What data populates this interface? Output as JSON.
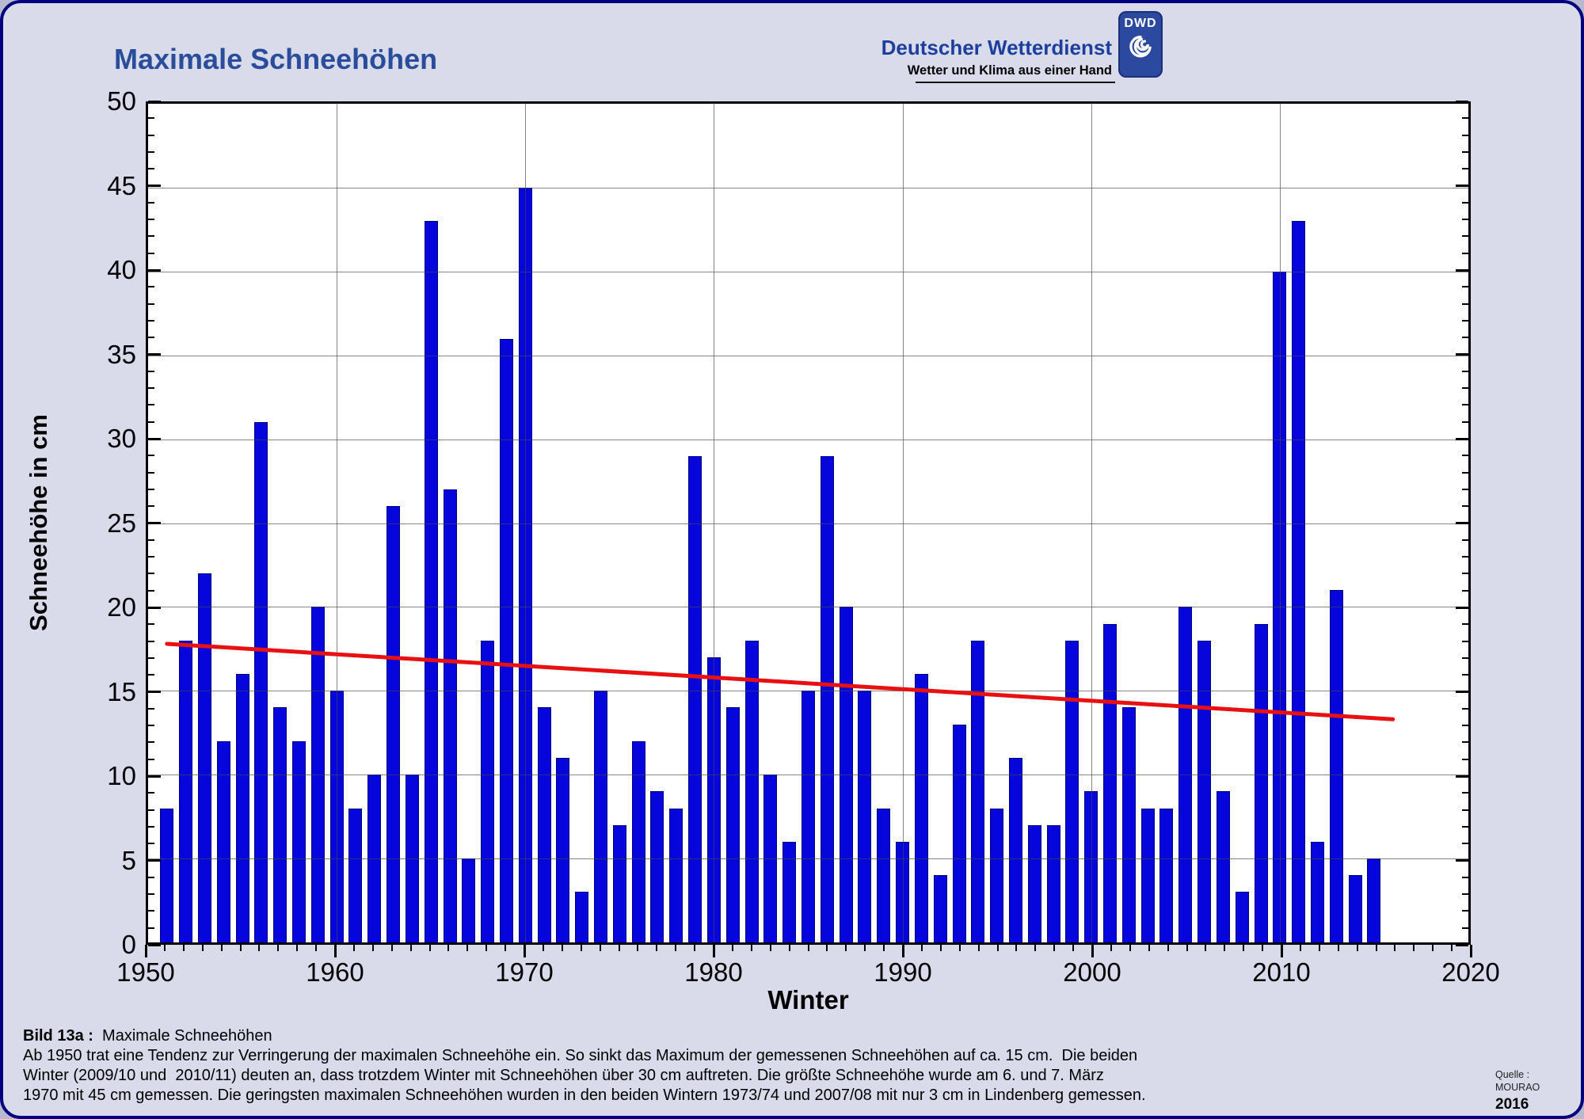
{
  "header": {
    "title": "Maximale Schneehöhen",
    "brand_name": "Deutscher Wetterdienst",
    "brand_tagline": "Wetter und Klima aus einer Hand",
    "logo_text": "DWD"
  },
  "chart_data": {
    "type": "bar",
    "title": "Maximale Schneehöhen",
    "xlabel": "Winter",
    "ylabel": "Schneehöhe in cm",
    "xlim": [
      1950,
      2020
    ],
    "ylim": [
      0,
      50
    ],
    "x_tick_step": 10,
    "y_tick_step": 5,
    "grid": true,
    "legend": "none",
    "x": [
      1951,
      1952,
      1953,
      1954,
      1955,
      1956,
      1957,
      1958,
      1959,
      1960,
      1961,
      1962,
      1963,
      1964,
      1965,
      1966,
      1967,
      1968,
      1969,
      1970,
      1971,
      1972,
      1973,
      1974,
      1975,
      1976,
      1977,
      1978,
      1979,
      1980,
      1981,
      1982,
      1983,
      1984,
      1985,
      1986,
      1987,
      1988,
      1989,
      1990,
      1991,
      1992,
      1993,
      1994,
      1995,
      1996,
      1997,
      1998,
      1999,
      2000,
      2001,
      2002,
      2003,
      2004,
      2005,
      2006,
      2007,
      2008,
      2009,
      2010,
      2011,
      2012,
      2013,
      2014,
      2015
    ],
    "values": [
      8,
      18,
      22,
      12,
      16,
      31,
      14,
      12,
      20,
      15,
      8,
      10,
      26,
      10,
      43,
      27,
      5,
      18,
      36,
      45,
      14,
      11,
      3,
      15,
      7,
      12,
      9,
      8,
      29,
      17,
      14,
      18,
      10,
      6,
      15,
      29,
      20,
      15,
      8,
      6,
      16,
      4,
      13,
      18,
      8,
      11,
      7,
      7,
      18,
      9,
      19,
      14,
      8,
      8,
      20,
      18,
      9,
      3,
      19,
      40,
      43,
      6,
      21,
      4,
      5
    ],
    "trend": {
      "x1": 1951,
      "y1": 17.8,
      "x2": 2016,
      "y2": 13.3
    }
  },
  "caption": {
    "label": "Bild 13a :",
    "title_text": "  Maximale Schneehöhen",
    "line1": "Ab 1950 trat eine Tendenz zur Verringerung der maximalen Schneehöhe ein. So sinkt das Maximum der gemessenen Schneehöhen auf ca. 15 cm.  Die beiden",
    "line2": "Winter (2009/10 und  2010/11) deuten an, dass trotzdem Winter mit Schneehöhen über 30 cm auftreten. Die größte Schneehöhe wurde am 6. und 7. März",
    "line3": "1970 mit 45 cm gemessen. Die geringsten maximalen Schneehöhen wurden in den beiden Wintern 1973/74 und 2007/08 mit nur 3 cm in Lindenberg gemessen."
  },
  "source": {
    "line1": "Quelle :",
    "line2": "MOURAO",
    "line3": "2016"
  },
  "colors": {
    "background": "#d9daea",
    "border_navy": "#00007f",
    "title_blue": "#2a4d9b",
    "brand_blue": "#1c3f9e",
    "bar_blue": "#0505dc",
    "trend_red": "#e81012",
    "grid_gray": "#606060"
  }
}
